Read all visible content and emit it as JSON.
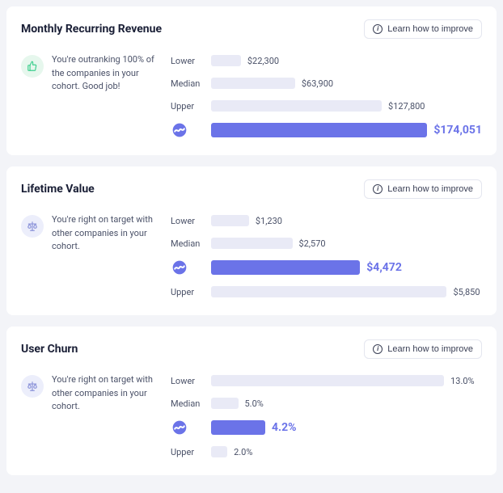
{
  "colors": {
    "page_bg": "#f3f4f8",
    "card_bg": "#ffffff",
    "title": "#1a1f36",
    "muted": "#4a5168",
    "bench_bar": "#e9eaf6",
    "you_bar": "#6b73e8",
    "you_value": "#6b73e8",
    "good_badge_bg": "#e6f7ed",
    "good_badge_fg": "#3ecf8e",
    "neutral_badge_bg": "#eceefb",
    "neutral_badge_fg": "#8b93d9",
    "btn_border": "#e4e6ef"
  },
  "learn_label": "Learn how to improve",
  "labels": {
    "lower": "Lower",
    "median": "Median",
    "upper": "Upper"
  },
  "cards": [
    {
      "id": "mrr",
      "title": "Monthly Recurring Revenue",
      "status_kind": "good",
      "status_text": "You're outranking 100% of the companies in your cohort. Good job!",
      "bar_max_pct": 88,
      "rows": [
        {
          "key": "lower",
          "label": "Lower",
          "value_text": "$22,300",
          "pct": 11,
          "you": false
        },
        {
          "key": "median",
          "label": "Median",
          "value_text": "$63,900",
          "pct": 31,
          "you": false
        },
        {
          "key": "upper",
          "label": "Upper",
          "value_text": "$127,800",
          "pct": 63,
          "you": false
        },
        {
          "key": "you",
          "label": "",
          "value_text": "$174,051",
          "pct": 85,
          "you": true
        }
      ]
    },
    {
      "id": "ltv",
      "title": "Lifetime Value",
      "status_kind": "neutral",
      "status_text": "You're right on target with other companies in your cohort.",
      "bar_max_pct": 88,
      "rows": [
        {
          "key": "lower",
          "label": "Lower",
          "value_text": "$1,230",
          "pct": 14,
          "you": false
        },
        {
          "key": "median",
          "label": "Median",
          "value_text": "$2,570",
          "pct": 30,
          "you": false
        },
        {
          "key": "you",
          "label": "",
          "value_text": "$4,472",
          "pct": 55,
          "you": true
        },
        {
          "key": "upper",
          "label": "Upper",
          "value_text": "$5,850",
          "pct": 87,
          "you": false
        }
      ]
    },
    {
      "id": "churn",
      "title": "User Churn",
      "status_kind": "neutral",
      "status_text": "You're right on target with other companies in your cohort.",
      "bar_max_pct": 88,
      "rows": [
        {
          "key": "lower",
          "label": "Lower",
          "value_text": "13.0%",
          "pct": 86,
          "you": false
        },
        {
          "key": "median",
          "label": "Median",
          "value_text": "5.0%",
          "pct": 10,
          "you": false
        },
        {
          "key": "you",
          "label": "",
          "value_text": "4.2%",
          "pct": 20,
          "you": true
        },
        {
          "key": "upper",
          "label": "Upper",
          "value_text": "2.0%",
          "pct": 6,
          "you": false
        }
      ]
    }
  ]
}
